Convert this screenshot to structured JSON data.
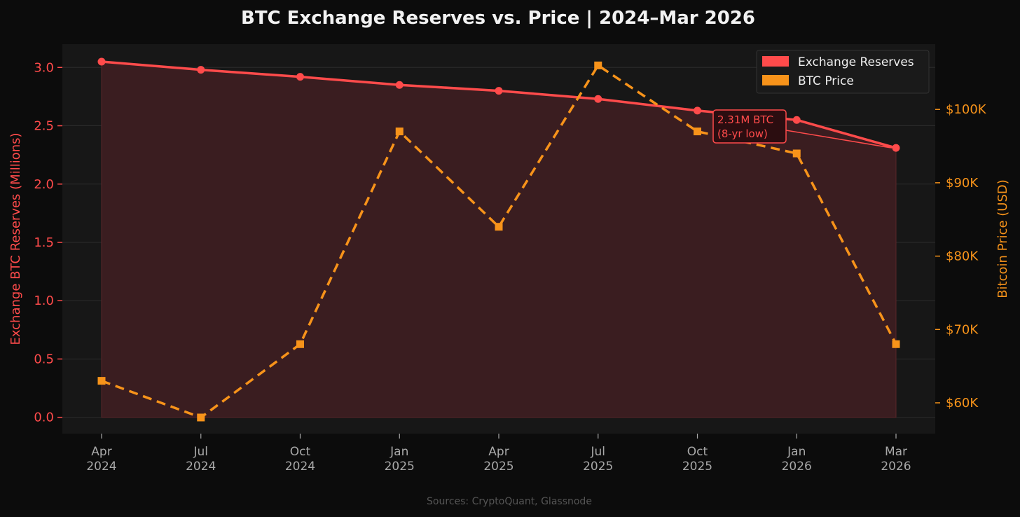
{
  "chart_data": {
    "type": "line",
    "title": "BTC Exchange Reserves vs. Price  |  2024–Mar 2026",
    "categories": [
      [
        "Apr",
        "2024"
      ],
      [
        "Jul",
        "2024"
      ],
      [
        "Oct",
        "2024"
      ],
      [
        "Jan",
        "2025"
      ],
      [
        "Apr",
        "2025"
      ],
      [
        "Jul",
        "2025"
      ],
      [
        "Oct",
        "2025"
      ],
      [
        "Jan",
        "2026"
      ],
      [
        "Mar",
        "2026"
      ]
    ],
    "series": [
      {
        "name": "Exchange Reserves",
        "axis": "left",
        "style": "solid-fill",
        "color": "#ff4b4b",
        "values": [
          3.05,
          2.98,
          2.92,
          2.85,
          2.8,
          2.73,
          2.63,
          2.55,
          2.31
        ]
      },
      {
        "name": "BTC Price",
        "axis": "right",
        "style": "dashed",
        "color": "#f7931a",
        "values": [
          63000,
          58000,
          68000,
          97000,
          84000,
          106000,
          97000,
          94000,
          68000
        ]
      }
    ],
    "left_axis": {
      "label": "Exchange BTC Reserves (Millions)",
      "ylim": [
        -0.14,
        3.2
      ],
      "ticks": [
        0.0,
        0.5,
        1.0,
        1.5,
        2.0,
        2.5,
        3.0
      ],
      "tick_labels": [
        "0.0",
        "0.5",
        "1.0",
        "1.5",
        "2.0",
        "2.5",
        "3.0"
      ]
    },
    "right_axis": {
      "label": "Bitcoin Price (USD)",
      "ylim": [
        55800,
        108900
      ],
      "ticks": [
        60000,
        70000,
        80000,
        90000,
        100000
      ],
      "tick_labels": [
        "$60K",
        "$70K",
        "$80K",
        "$90K",
        "$100K"
      ]
    },
    "legend": {
      "placement": "top-right"
    },
    "annotation": {
      "lines": [
        "2.31M BTC",
        "(8-yr low)"
      ],
      "target_index": 8,
      "target_series": "Exchange Reserves"
    },
    "grid": true,
    "source": "Sources: CryptoQuant, Glassnode"
  },
  "colors": {
    "background": "#0c0c0c",
    "plot_background": "#171717",
    "reserves": "#ff4b4b",
    "price": "#f7931a",
    "fill": "#3a1d20",
    "grid": "#2c2c2c"
  }
}
